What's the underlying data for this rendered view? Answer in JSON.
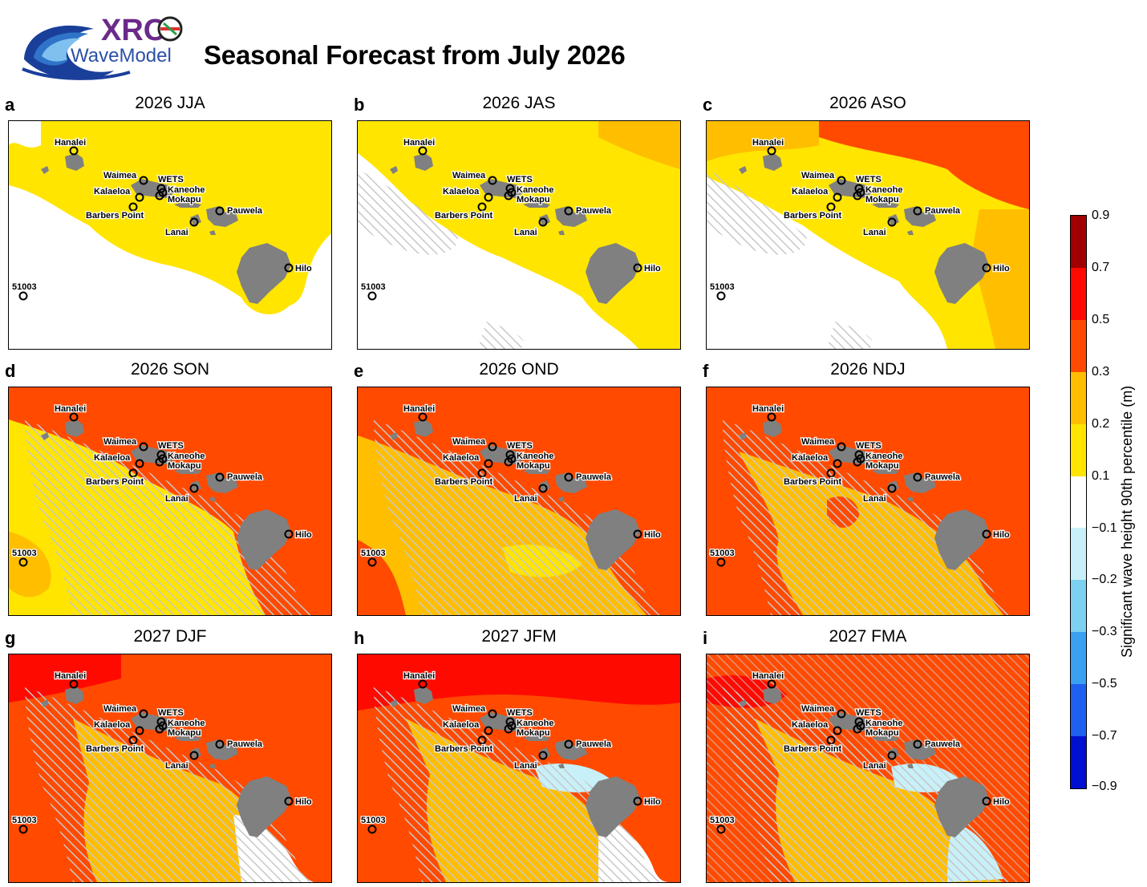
{
  "header": {
    "logo_text_top": "XRO",
    "logo_text_bottom": "WaveModel",
    "title": "Seasonal Forecast from July 2026"
  },
  "colors": {
    "land": "#808080",
    "white": "#ffffff",
    "yellow": "#ffe500",
    "amber": "#ffbe00",
    "orange": "#ff4a00",
    "red": "#ff0a00",
    "cyan_light": "#c8f0f8",
    "hatch": "#c8c8c8"
  },
  "stations": [
    {
      "name": "Hanalei"
    },
    {
      "name": "Waimea"
    },
    {
      "name": "WETS"
    },
    {
      "name": "Kaneohe"
    },
    {
      "name": "Mokapu"
    },
    {
      "name": "Kalaeloa"
    },
    {
      "name": "Barbers Point"
    },
    {
      "name": "Pauwela"
    },
    {
      "name": "Lanai"
    },
    {
      "name": "Hilo"
    },
    {
      "name": "51003"
    }
  ],
  "panels": [
    {
      "letter": "a",
      "title": "2026 JJA",
      "background": "yellow-white",
      "hatched": false
    },
    {
      "letter": "b",
      "title": "2026 JAS",
      "background": "yellow-white",
      "hatched": true
    },
    {
      "letter": "c",
      "title": "2026 ASO",
      "background": "orange-amber",
      "hatched": true
    },
    {
      "letter": "d",
      "title": "2026 SON",
      "background": "orange-yellow",
      "hatched": true
    },
    {
      "letter": "e",
      "title": "2026 OND",
      "background": "orange-amber",
      "hatched": true
    },
    {
      "letter": "f",
      "title": "2026 NDJ",
      "background": "orange-amber",
      "hatched": true
    },
    {
      "letter": "g",
      "title": "2027 DJF",
      "background": "orange-amber-red",
      "hatched": true
    },
    {
      "letter": "h",
      "title": "2027 JFM",
      "background": "orange-red-cyan",
      "hatched": true
    },
    {
      "letter": "i",
      "title": "2027 FMA",
      "background": "orange-red-cyan",
      "hatched": true
    }
  ],
  "colorbar": {
    "label": "Significant wave height 90th percentile (m)",
    "ticks": [
      "0.9",
      "0.7",
      "0.5",
      "0.3",
      "0.2",
      "0.1",
      "−0.1",
      "−0.2",
      "−0.3",
      "−0.5",
      "−0.7",
      "−0.9"
    ],
    "segment_colors": [
      "#a00000",
      "#ff0a00",
      "#ff4a00",
      "#ffbe00",
      "#ffe500",
      "#ffffff",
      "#c8f0f8",
      "#7cd0f0",
      "#3aa0f0",
      "#1e60f0",
      "#0010d0"
    ]
  }
}
